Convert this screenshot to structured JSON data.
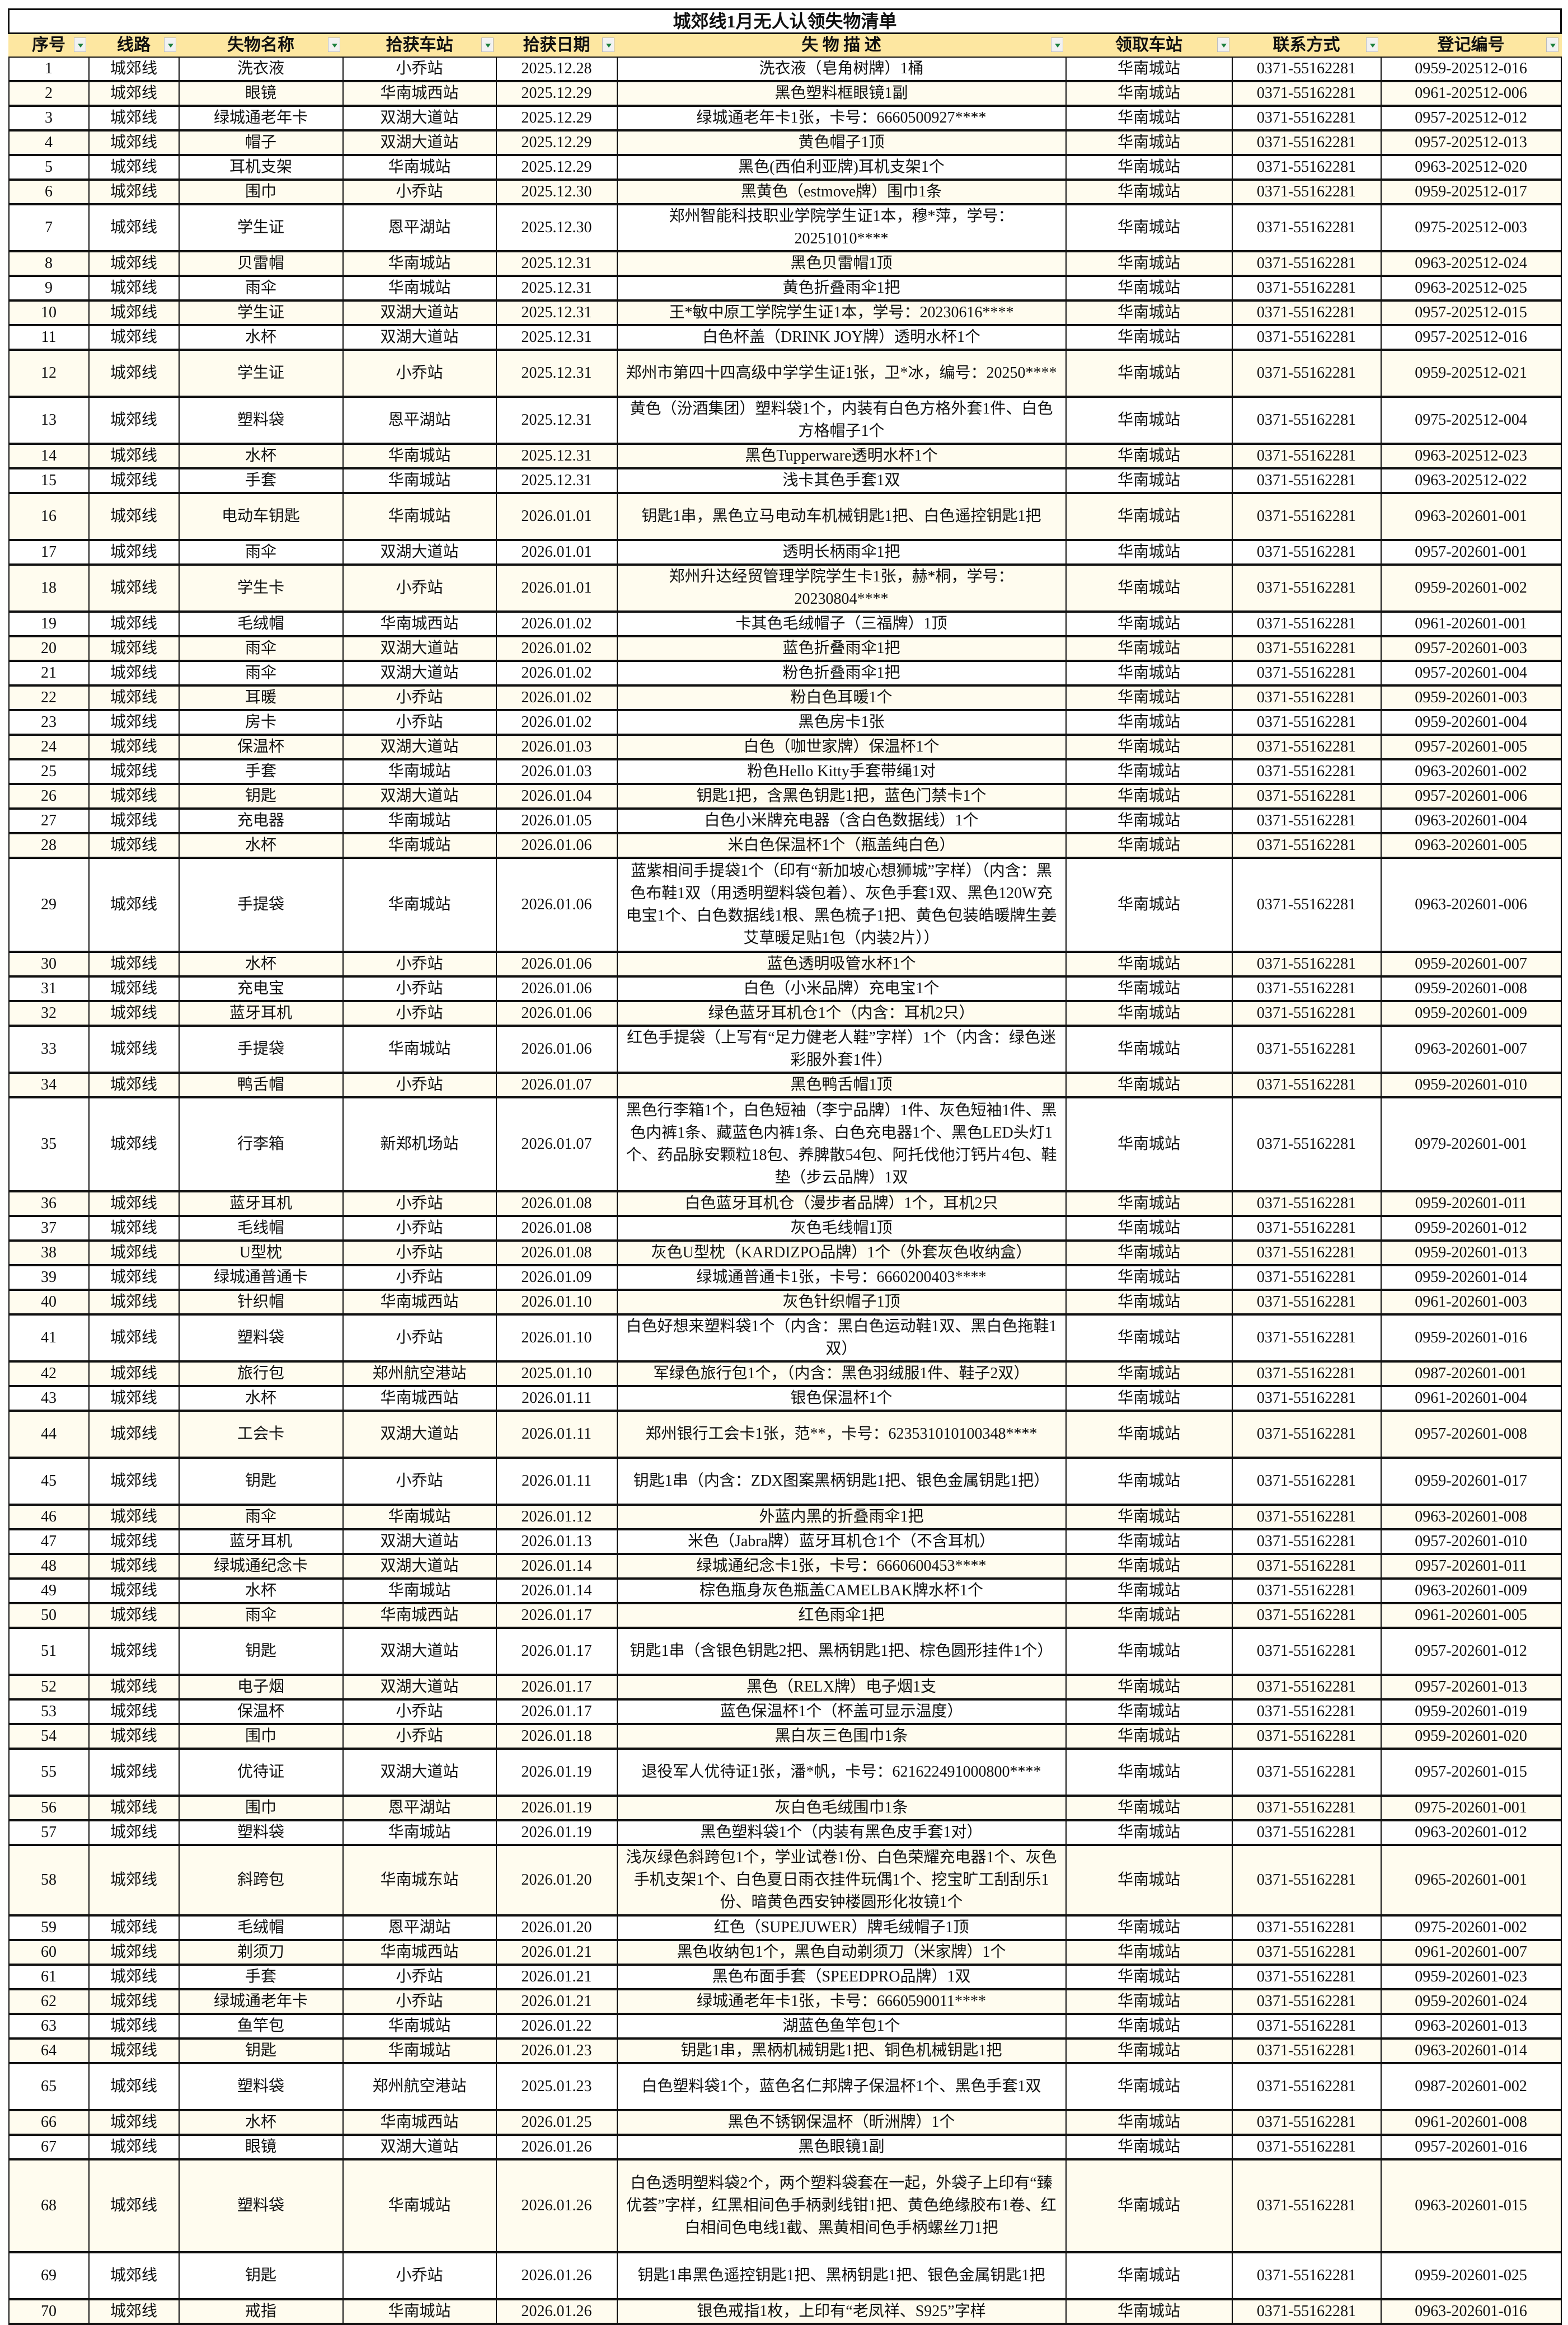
{
  "title": "城郊线1月无人认领失物清单",
  "colors": {
    "header_bg": "#fde7a1",
    "alt_row_bg": "#fffcef",
    "filter_arrow": "#1a7f3c"
  },
  "columns": [
    "序号",
    "线路",
    "失物名称",
    "拾获车站",
    "拾获日期",
    "失 物 描 述",
    "领取车站",
    "联系方式",
    "登记编号"
  ],
  "rows": [
    [
      "1",
      "城郊线",
      "洗衣液",
      "小乔站",
      "2025.12.28",
      "洗衣液（皂角树牌）1桶",
      "华南城站",
      "0371-55162281",
      "0959-202512-016"
    ],
    [
      "2",
      "城郊线",
      "眼镜",
      "华南城西站",
      "2025.12.29",
      "黑色塑料框眼镜1副",
      "华南城站",
      "0371-55162281",
      "0961-202512-006"
    ],
    [
      "3",
      "城郊线",
      "绿城通老年卡",
      "双湖大道站",
      "2025.12.29",
      "绿城通老年卡1张，卡号：6660500927****",
      "华南城站",
      "0371-55162281",
      "0957-202512-012"
    ],
    [
      "4",
      "城郊线",
      "帽子",
      "双湖大道站",
      "2025.12.29",
      "黄色帽子1顶",
      "华南城站",
      "0371-55162281",
      "0957-202512-013"
    ],
    [
      "5",
      "城郊线",
      "耳机支架",
      "华南城站",
      "2025.12.29",
      "黑色(西伯利亚牌)耳机支架1个",
      "华南城站",
      "0371-55162281",
      "0963-202512-020"
    ],
    [
      "6",
      "城郊线",
      "围巾",
      "小乔站",
      "2025.12.30",
      "黑黄色（estmove牌）围巾1条",
      "华南城站",
      "0371-55162281",
      "0959-202512-017"
    ],
    [
      "7",
      "城郊线",
      "学生证",
      "恩平湖站",
      "2025.12.30",
      "郑州智能科技职业学院学生证1本，穆*萍，学号：20251010****",
      "华南城站",
      "0371-55162281",
      "0975-202512-003"
    ],
    [
      "8",
      "城郊线",
      "贝雷帽",
      "华南城站",
      "2025.12.31",
      "黑色贝雷帽1顶",
      "华南城站",
      "0371-55162281",
      "0963-202512-024"
    ],
    [
      "9",
      "城郊线",
      "雨伞",
      "华南城站",
      "2025.12.31",
      "黄色折叠雨伞1把",
      "华南城站",
      "0371-55162281",
      "0963-202512-025"
    ],
    [
      "10",
      "城郊线",
      "学生证",
      "双湖大道站",
      "2025.12.31",
      "王*敏中原工学院学生证1本，学号：20230616****",
      "华南城站",
      "0371-55162281",
      "0957-202512-015"
    ],
    [
      "11",
      "城郊线",
      "水杯",
      "双湖大道站",
      "2025.12.31",
      "白色杯盖（DRINK JOY牌）透明水杯1个",
      "华南城站",
      "0371-55162281",
      "0957-202512-016"
    ],
    [
      "12",
      "城郊线",
      "学生证",
      "小乔站",
      "2025.12.31",
      "郑州市第四十四高级中学学生证1张，卫*冰，编号：20250****",
      "华南城站",
      "0371-55162281",
      "0959-202512-021"
    ],
    [
      "13",
      "城郊线",
      "塑料袋",
      "恩平湖站",
      "2025.12.31",
      "黄色（汾酒集团）塑料袋1个，内装有白色方格外套1件、白色方格帽子1个",
      "华南城站",
      "0371-55162281",
      "0975-202512-004"
    ],
    [
      "14",
      "城郊线",
      "水杯",
      "华南城站",
      "2025.12.31",
      "黑色Tupperware透明水杯1个",
      "华南城站",
      "0371-55162281",
      "0963-202512-023"
    ],
    [
      "15",
      "城郊线",
      "手套",
      "华南城站",
      "2025.12.31",
      "浅卡其色手套1双",
      "华南城站",
      "0371-55162281",
      "0963-202512-022"
    ],
    [
      "16",
      "城郊线",
      "电动车钥匙",
      "华南城站",
      "2026.01.01",
      "钥匙1串，黑色立马电动车机械钥匙1把、白色遥控钥匙1把",
      "华南城站",
      "0371-55162281",
      "0963-202601-001"
    ],
    [
      "17",
      "城郊线",
      "雨伞",
      "双湖大道站",
      "2026.01.01",
      "透明长柄雨伞1把",
      "华南城站",
      "0371-55162281",
      "0957-202601-001"
    ],
    [
      "18",
      "城郊线",
      "学生卡",
      "小乔站",
      "2026.01.01",
      "郑州升达经贸管理学院学生卡1张，赫*桐，学号：20230804****",
      "华南城站",
      "0371-55162281",
      "0959-202601-002"
    ],
    [
      "19",
      "城郊线",
      "毛绒帽",
      "华南城西站",
      "2026.01.02",
      "卡其色毛绒帽子（三福牌）1顶",
      "华南城站",
      "0371-55162281",
      "0961-202601-001"
    ],
    [
      "20",
      "城郊线",
      "雨伞",
      "双湖大道站",
      "2026.01.02",
      "蓝色折叠雨伞1把",
      "华南城站",
      "0371-55162281",
      "0957-202601-003"
    ],
    [
      "21",
      "城郊线",
      "雨伞",
      "双湖大道站",
      "2026.01.02",
      "粉色折叠雨伞1把",
      "华南城站",
      "0371-55162281",
      "0957-202601-004"
    ],
    [
      "22",
      "城郊线",
      "耳暖",
      "小乔站",
      "2026.01.02",
      "粉白色耳暖1个",
      "华南城站",
      "0371-55162281",
      "0959-202601-003"
    ],
    [
      "23",
      "城郊线",
      "房卡",
      "小乔站",
      "2026.01.02",
      "黑色房卡1张",
      "华南城站",
      "0371-55162281",
      "0959-202601-004"
    ],
    [
      "24",
      "城郊线",
      "保温杯",
      "双湖大道站",
      "2026.01.03",
      "白色（咖世家牌）保温杯1个",
      "华南城站",
      "0371-55162281",
      "0957-202601-005"
    ],
    [
      "25",
      "城郊线",
      "手套",
      "华南城站",
      "2026.01.03",
      "粉色Hello Kitty手套带绳1对",
      "华南城站",
      "0371-55162281",
      "0963-202601-002"
    ],
    [
      "26",
      "城郊线",
      "钥匙",
      "双湖大道站",
      "2026.01.04",
      "钥匙1把，含黑色钥匙1把，蓝色门禁卡1个",
      "华南城站",
      "0371-55162281",
      "0957-202601-006"
    ],
    [
      "27",
      "城郊线",
      "充电器",
      "华南城站",
      "2026.01.05",
      "白色小米牌充电器（含白色数据线）1个",
      "华南城站",
      "0371-55162281",
      "0963-202601-004"
    ],
    [
      "28",
      "城郊线",
      "水杯",
      "华南城站",
      "2026.01.06",
      "米白色保温杯1个（瓶盖纯白色）",
      "华南城站",
      "0371-55162281",
      "0963-202601-005"
    ],
    [
      "29",
      "城郊线",
      "手提袋",
      "华南城站",
      "2026.01.06",
      "蓝紫相间手提袋1个（印有“新加坡心想狮城”字样）（内含：黑色布鞋1双（用透明塑料袋包着）、灰色手套1双、黑色120W充电宝1个、白色数据线1根、黑色梳子1把、黄色包装皓暖牌生姜艾草暖足贴1包（内装2片））",
      "华南城站",
      "0371-55162281",
      "0963-202601-006"
    ],
    [
      "30",
      "城郊线",
      "水杯",
      "小乔站",
      "2026.01.06",
      "蓝色透明吸管水杯1个",
      "华南城站",
      "0371-55162281",
      "0959-202601-007"
    ],
    [
      "31",
      "城郊线",
      "充电宝",
      "小乔站",
      "2026.01.06",
      "白色（小米品牌）充电宝1个",
      "华南城站",
      "0371-55162281",
      "0959-202601-008"
    ],
    [
      "32",
      "城郊线",
      "蓝牙耳机",
      "小乔站",
      "2026.01.06",
      "绿色蓝牙耳机仓1个（内含：耳机2只）",
      "华南城站",
      "0371-55162281",
      "0959-202601-009"
    ],
    [
      "33",
      "城郊线",
      "手提袋",
      "华南城站",
      "2026.01.06",
      "红色手提袋（上写有“足力健老人鞋”字样）1个（内含：绿色迷彩服外套1件）",
      "华南城站",
      "0371-55162281",
      "0963-202601-007"
    ],
    [
      "34",
      "城郊线",
      "鸭舌帽",
      "小乔站",
      "2026.01.07",
      "黑色鸭舌帽1顶",
      "华南城站",
      "0371-55162281",
      "0959-202601-010"
    ],
    [
      "35",
      "城郊线",
      "行李箱",
      "新郑机场站",
      "2026.01.07",
      "黑色行李箱1个，白色短袖（李宁品牌）1件、灰色短袖1件、黑色内裤1条、藏蓝色内裤1条、白色充电器1个、黑色LED头灯1个、药品脉安颗粒18包、养脾散54包、阿托伐他汀钙片4包、鞋垫（步云品牌）1双",
      "华南城站",
      "0371-55162281",
      "0979-202601-001"
    ],
    [
      "36",
      "城郊线",
      "蓝牙耳机",
      "小乔站",
      "2026.01.08",
      "白色蓝牙耳机仓（漫步者品牌）1个，耳机2只",
      "华南城站",
      "0371-55162281",
      "0959-202601-011"
    ],
    [
      "37",
      "城郊线",
      "毛线帽",
      "小乔站",
      "2026.01.08",
      "灰色毛线帽1顶",
      "华南城站",
      "0371-55162281",
      "0959-202601-012"
    ],
    [
      "38",
      "城郊线",
      "U型枕",
      "小乔站",
      "2026.01.08",
      "灰色U型枕（KARDIZPO品牌）1个（外套灰色收纳盒）",
      "华南城站",
      "0371-55162281",
      "0959-202601-013"
    ],
    [
      "39",
      "城郊线",
      "绿城通普通卡",
      "小乔站",
      "2026.01.09",
      "绿城通普通卡1张，卡号：6660200403****",
      "华南城站",
      "0371-55162281",
      "0959-202601-014"
    ],
    [
      "40",
      "城郊线",
      "针织帽",
      "华南城西站",
      "2026.01.10",
      "灰色针织帽子1顶",
      "华南城站",
      "0371-55162281",
      "0961-202601-003"
    ],
    [
      "41",
      "城郊线",
      "塑料袋",
      "小乔站",
      "2026.01.10",
      "白色好想来塑料袋1个（内含：黑白色运动鞋1双、黑白色拖鞋1双）",
      "华南城站",
      "0371-55162281",
      "0959-202601-016"
    ],
    [
      "42",
      "城郊线",
      "旅行包",
      "郑州航空港站",
      "2025.01.10",
      "军绿色旅行包1个，（内含：黑色羽绒服1件、鞋子2双）",
      "华南城站",
      "0371-55162281",
      "0987-202601-001"
    ],
    [
      "43",
      "城郊线",
      "水杯",
      "华南城西站",
      "2026.01.11",
      "银色保温杯1个",
      "华南城站",
      "0371-55162281",
      "0961-202601-004"
    ],
    [
      "44",
      "城郊线",
      "工会卡",
      "双湖大道站",
      "2026.01.11",
      "郑州银行工会卡1张，范**，卡号：623531010100348****",
      "华南城站",
      "0371-55162281",
      "0957-202601-008"
    ],
    [
      "45",
      "城郊线",
      "钥匙",
      "小乔站",
      "2026.01.11",
      "钥匙1串（内含：ZDX图案黑柄钥匙1把、银色金属钥匙1把）",
      "华南城站",
      "0371-55162281",
      "0959-202601-017"
    ],
    [
      "46",
      "城郊线",
      "雨伞",
      "华南城站",
      "2026.01.12",
      "外蓝内黑的折叠雨伞1把",
      "华南城站",
      "0371-55162281",
      "0963-202601-008"
    ],
    [
      "47",
      "城郊线",
      "蓝牙耳机",
      "双湖大道站",
      "2026.01.13",
      "米色（Jabra牌）蓝牙耳机仓1个（不含耳机）",
      "华南城站",
      "0371-55162281",
      "0957-202601-010"
    ],
    [
      "48",
      "城郊线",
      "绿城通纪念卡",
      "双湖大道站",
      "2026.01.14",
      "绿城通纪念卡1张，卡号：6660600453****",
      "华南城站",
      "0371-55162281",
      "0957-202601-011"
    ],
    [
      "49",
      "城郊线",
      "水杯",
      "华南城站",
      "2026.01.14",
      "棕色瓶身灰色瓶盖CAMELBAK牌水杯1个",
      "华南城站",
      "0371-55162281",
      "0963-202601-009"
    ],
    [
      "50",
      "城郊线",
      "雨伞",
      "华南城西站",
      "2026.01.17",
      "红色雨伞1把",
      "华南城站",
      "0371-55162281",
      "0961-202601-005"
    ],
    [
      "51",
      "城郊线",
      "钥匙",
      "双湖大道站",
      "2026.01.17",
      "钥匙1串（含银色钥匙2把、黑柄钥匙1把、棕色圆形挂件1个）",
      "华南城站",
      "0371-55162281",
      "0957-202601-012"
    ],
    [
      "52",
      "城郊线",
      "电子烟",
      "双湖大道站",
      "2026.01.17",
      "黑色（RELX牌）电子烟1支",
      "华南城站",
      "0371-55162281",
      "0957-202601-013"
    ],
    [
      "53",
      "城郊线",
      "保温杯",
      "小乔站",
      "2026.01.17",
      "蓝色保温杯1个（杯盖可显示温度）",
      "华南城站",
      "0371-55162281",
      "0959-202601-019"
    ],
    [
      "54",
      "城郊线",
      "围巾",
      "小乔站",
      "2026.01.18",
      "黑白灰三色围巾1条",
      "华南城站",
      "0371-55162281",
      "0959-202601-020"
    ],
    [
      "55",
      "城郊线",
      "优待证",
      "双湖大道站",
      "2026.01.19",
      "退役军人优待证1张，潘*帆，卡号：621622491000800****",
      "华南城站",
      "0371-55162281",
      "0957-202601-015"
    ],
    [
      "56",
      "城郊线",
      "围巾",
      "恩平湖站",
      "2026.01.19",
      "灰白色毛绒围巾1条",
      "华南城站",
      "0371-55162281",
      "0975-202601-001"
    ],
    [
      "57",
      "城郊线",
      "塑料袋",
      "华南城站",
      "2026.01.19",
      "黑色塑料袋1个（内装有黑色皮手套1对）",
      "华南城站",
      "0371-55162281",
      "0963-202601-012"
    ],
    [
      "58",
      "城郊线",
      "斜跨包",
      "华南城东站",
      "2026.01.20",
      "浅灰绿色斜跨包1个，学业试卷1份、白色荣耀充电器1个、灰色手机支架1个、白色夏日雨衣挂件玩偶1个、挖宝旷工刮刮乐1份、暗黄色西安钟楼圆形化妆镜1个",
      "华南城站",
      "0371-55162281",
      "0965-202601-001"
    ],
    [
      "59",
      "城郊线",
      "毛绒帽",
      "恩平湖站",
      "2026.01.20",
      "红色（SUPEJUWER）牌毛绒帽子1顶",
      "华南城站",
      "0371-55162281",
      "0975-202601-002"
    ],
    [
      "60",
      "城郊线",
      "剃须刀",
      "华南城西站",
      "2026.01.21",
      "黑色收纳包1个，黑色自动剃须刀（米家牌）1个",
      "华南城站",
      "0371-55162281",
      "0961-202601-007"
    ],
    [
      "61",
      "城郊线",
      "手套",
      "小乔站",
      "2026.01.21",
      "黑色布面手套（SPEEDPRO品牌）1双",
      "华南城站",
      "0371-55162281",
      "0959-202601-023"
    ],
    [
      "62",
      "城郊线",
      "绿城通老年卡",
      "小乔站",
      "2026.01.21",
      "绿城通老年卡1张，卡号：6660590011****",
      "华南城站",
      "0371-55162281",
      "0959-202601-024"
    ],
    [
      "63",
      "城郊线",
      "鱼竿包",
      "华南城站",
      "2026.01.22",
      "湖蓝色鱼竿包1个",
      "华南城站",
      "0371-55162281",
      "0963-202601-013"
    ],
    [
      "64",
      "城郊线",
      "钥匙",
      "华南城站",
      "2026.01.23",
      "钥匙1串，黑柄机械钥匙1把、铜色机械钥匙1把",
      "华南城站",
      "0371-55162281",
      "0963-202601-014"
    ],
    [
      "65",
      "城郊线",
      "塑料袋",
      "郑州航空港站",
      "2025.01.23",
      "白色塑料袋1个，蓝色名仁邦牌子保温杯1个、黑色手套1双",
      "华南城站",
      "0371-55162281",
      "0987-202601-002"
    ],
    [
      "66",
      "城郊线",
      "水杯",
      "华南城西站",
      "2026.01.25",
      "黑色不锈钢保温杯（昕洲牌）1个",
      "华南城站",
      "0371-55162281",
      "0961-202601-008"
    ],
    [
      "67",
      "城郊线",
      "眼镜",
      "双湖大道站",
      "2026.01.26",
      "黑色眼镜1副",
      "华南城站",
      "0371-55162281",
      "0957-202601-016"
    ],
    [
      "68",
      "城郊线",
      "塑料袋",
      "华南城站",
      "2026.01.26",
      "白色透明塑料袋2个，两个塑料袋套在一起，外袋子上印有“臻优荟”字样，红黑相间色手柄剥线钳1把、黄色绝缘胶布1卷、红白相间色电线1截、黑黄相间色手柄螺丝刀1把",
      "华南城站",
      "0371-55162281",
      "0963-202601-015"
    ],
    [
      "69",
      "城郊线",
      "钥匙",
      "小乔站",
      "2026.01.26",
      "钥匙1串黑色遥控钥匙1把、黑柄钥匙1把、银色金属钥匙1把",
      "华南城站",
      "0371-55162281",
      "0959-202601-025"
    ],
    [
      "70",
      "城郊线",
      "戒指",
      "华南城站",
      "2026.01.26",
      "银色戒指1枚，上印有“老凤祥、S925”字样",
      "华南城站",
      "0371-55162281",
      "0963-202601-016"
    ]
  ]
}
